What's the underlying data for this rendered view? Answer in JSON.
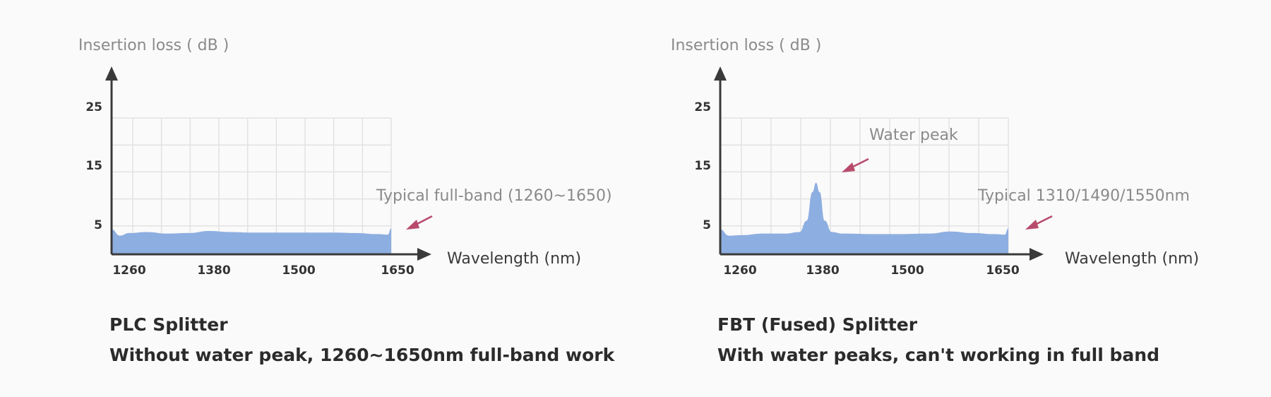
{
  "chart_data": [
    {
      "type": "area",
      "ylabel": "Insertion loss ( dB )",
      "xlabel": "Wavelength (nm)",
      "y_ticks": [
        "25",
        "15",
        "5"
      ],
      "x_ticks": [
        "1260",
        "1380",
        "1500",
        "1650"
      ],
      "ylim": [
        0,
        30
      ],
      "xlim": [
        1250,
        1650
      ],
      "x": [
        1250,
        1262,
        1275,
        1300,
        1330,
        1360,
        1390,
        1420,
        1450,
        1480,
        1510,
        1540,
        1570,
        1600,
        1630,
        1645,
        1650
      ],
      "y": [
        4.8,
        3.6,
        4.1,
        4.3,
        4.0,
        4.1,
        4.5,
        4.3,
        4.2,
        4.2,
        4.2,
        4.2,
        4.2,
        4.1,
        3.9,
        3.8,
        5.0
      ],
      "annotation": "Typical full-band (1260~1650)",
      "caption": [
        "PLC Splitter",
        "Without water peak, 1260~1650nm full-band work"
      ],
      "colors": {
        "fill": "#8daee0",
        "arrow": "#b84a6c",
        "axis": "#3a3a3a",
        "grid": "#e2e2e2"
      }
    },
    {
      "type": "area",
      "ylabel": "Insertion loss ( dB )",
      "xlabel": "Wavelength (nm)",
      "y_ticks": [
        "25",
        "15",
        "5"
      ],
      "x_ticks": [
        "1260",
        "1380",
        "1500",
        "1650"
      ],
      "ylim": [
        0,
        30
      ],
      "xlim": [
        1250,
        1650
      ],
      "x": [
        1250,
        1262,
        1280,
        1310,
        1340,
        1360,
        1370,
        1378,
        1383,
        1388,
        1395,
        1405,
        1420,
        1460,
        1500,
        1540,
        1570,
        1600,
        1630,
        1645,
        1650
      ],
      "y": [
        4.8,
        3.6,
        3.7,
        4.0,
        4.0,
        4.3,
        6.5,
        12.0,
        13.8,
        12.0,
        6.5,
        4.3,
        4.0,
        3.9,
        3.9,
        4.0,
        4.4,
        4.1,
        3.9,
        3.8,
        5.0
      ],
      "annotation": "Typical 1310/1490/1550nm",
      "peak_label": "Water peak",
      "caption": [
        "FBT (Fused) Splitter",
        "With water peaks, can't working in full band"
      ],
      "colors": {
        "fill": "#8daee0",
        "arrow": "#b84a6c",
        "axis": "#3a3a3a",
        "grid": "#e2e2e2"
      }
    }
  ]
}
